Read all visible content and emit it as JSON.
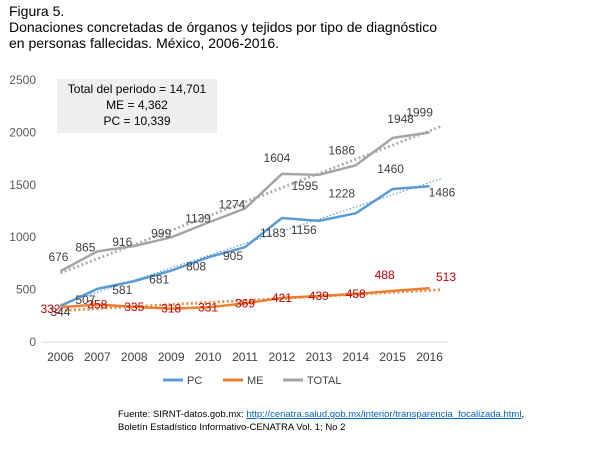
{
  "figure": {
    "label": "Figura 5.",
    "title_line1": "Donaciones concretadas de órganos y tejidos por tipo de diagnóstico",
    "title_line2": "en personas fallecidas. México, 2006-2016."
  },
  "summary": {
    "total": "Total del periodo =  14,701",
    "me": "ME = 4,362",
    "pc": "PC = 10,339"
  },
  "source": {
    "prefix": "Fuente: SIRNT-datos.gob.mx: ",
    "link": "http://cenatra.salud.gob.mx/interior/transparencia_focalizada.html",
    "suffix": ",",
    "line2": "Boletín Estadístico Informativo-CENATRA Vol. 1; No 2"
  },
  "chart_data": {
    "type": "line",
    "categories": [
      "2006",
      "2007",
      "2008",
      "2009",
      "2010",
      "2011",
      "2012",
      "2013",
      "2014",
      "2015",
      "2016"
    ],
    "ylim": [
      0,
      2500
    ],
    "yticks": [
      0,
      500,
      1000,
      1500,
      2000,
      2500
    ],
    "grid": false,
    "legend_position": "bottom",
    "series": [
      {
        "name": "PC",
        "color": "#5b9bd5",
        "label_color": "#404040",
        "values": [
          344,
          507,
          581,
          681,
          808,
          905,
          1183,
          1156,
          1228,
          1460,
          1486
        ],
        "labels": [
          "344",
          "507",
          "581",
          "681",
          "808",
          "905",
          "1183",
          "1156",
          "1228",
          "1460",
          "1486"
        ]
      },
      {
        "name": "ME",
        "color": "#ed7d31",
        "label_color": "#c00000",
        "values": [
          332,
          358,
          335,
          318,
          331,
          369,
          421,
          439,
          458,
          488,
          513
        ],
        "labels": [
          "332",
          "358",
          "335",
          "318",
          "331",
          "369",
          "421",
          "439",
          "458",
          "488",
          "513"
        ]
      },
      {
        "name": "TOTAL",
        "color": "#a5a5a5",
        "label_color": "#404040",
        "values": [
          676,
          865,
          916,
          999,
          1139,
          1274,
          1604,
          1595,
          1686,
          1948,
          1999
        ],
        "labels": [
          "676",
          "865",
          "916",
          "999",
          "1139",
          "1274",
          "1604",
          "1595",
          "1686",
          "1948",
          "1999"
        ]
      }
    ]
  }
}
